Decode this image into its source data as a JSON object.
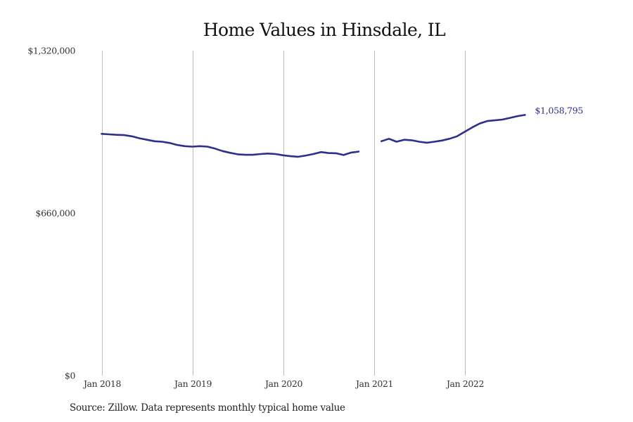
{
  "chart_data": {
    "type": "line",
    "title": "Home Values in Hinsdale, IL",
    "xlabel": "",
    "ylabel": "",
    "source": "Source: Zillow. Data represents monthly typical home value",
    "ylim": [
      0,
      1320000
    ],
    "y_ticks": [
      {
        "value": 0,
        "label": "$0"
      },
      {
        "value": 660000,
        "label": "$660,000"
      },
      {
        "value": 1320000,
        "label": "$1,320,000"
      }
    ],
    "x_range": [
      "2018-01",
      "2022-12"
    ],
    "x_ticks": [
      {
        "date": "2018-01",
        "label": "Jan 2018"
      },
      {
        "date": "2019-01",
        "label": "Jan 2019"
      },
      {
        "date": "2020-01",
        "label": "Jan 2020"
      },
      {
        "date": "2021-01",
        "label": "Jan 2021"
      },
      {
        "date": "2022-01",
        "label": "Jan 2022"
      }
    ],
    "grid": {
      "vertical": true,
      "horizontal": false
    },
    "legend": "none",
    "series_color": "#2e2e8c",
    "end_label": "$1,058,795",
    "series": [
      {
        "points": [
          {
            "date": "2018-01",
            "value": 982000
          },
          {
            "date": "2018-02",
            "value": 980000
          },
          {
            "date": "2018-03",
            "value": 978000
          },
          {
            "date": "2018-04",
            "value": 977000
          },
          {
            "date": "2018-05",
            "value": 972000
          },
          {
            "date": "2018-06",
            "value": 964000
          },
          {
            "date": "2018-07",
            "value": 958000
          },
          {
            "date": "2018-08",
            "value": 952000
          },
          {
            "date": "2018-09",
            "value": 950000
          },
          {
            "date": "2018-10",
            "value": 945000
          },
          {
            "date": "2018-11",
            "value": 937000
          },
          {
            "date": "2018-12",
            "value": 932000
          },
          {
            "date": "2019-01",
            "value": 930000
          },
          {
            "date": "2019-02",
            "value": 932000
          },
          {
            "date": "2019-03",
            "value": 930000
          },
          {
            "date": "2019-04",
            "value": 922000
          },
          {
            "date": "2019-05",
            "value": 912000
          },
          {
            "date": "2019-06",
            "value": 905000
          },
          {
            "date": "2019-07",
            "value": 899000
          },
          {
            "date": "2019-08",
            "value": 897000
          },
          {
            "date": "2019-09",
            "value": 897000
          },
          {
            "date": "2019-10",
            "value": 900000
          },
          {
            "date": "2019-11",
            "value": 902000
          },
          {
            "date": "2019-12",
            "value": 900000
          },
          {
            "date": "2020-01",
            "value": 895000
          },
          {
            "date": "2020-02",
            "value": 891000
          },
          {
            "date": "2020-03",
            "value": 889000
          },
          {
            "date": "2020-04",
            "value": 894000
          },
          {
            "date": "2020-05",
            "value": 900000
          },
          {
            "date": "2020-06",
            "value": 908000
          },
          {
            "date": "2020-07",
            "value": 904000
          },
          {
            "date": "2020-08",
            "value": 903000
          },
          {
            "date": "2020-09",
            "value": 896000
          },
          {
            "date": "2020-10",
            "value": 906000
          },
          {
            "date": "2020-11",
            "value": 910000
          },
          {
            "date": "2020-12",
            "value": null
          },
          {
            "date": "2021-01",
            "value": null
          },
          {
            "date": "2021-02",
            "value": 952000
          },
          {
            "date": "2021-03",
            "value": 962000
          },
          {
            "date": "2021-04",
            "value": 950000
          },
          {
            "date": "2021-05",
            "value": 958000
          },
          {
            "date": "2021-06",
            "value": 956000
          },
          {
            "date": "2021-07",
            "value": 950000
          },
          {
            "date": "2021-08",
            "value": 946000
          },
          {
            "date": "2021-09",
            "value": 950000
          },
          {
            "date": "2021-10",
            "value": 955000
          },
          {
            "date": "2021-11",
            "value": 962000
          },
          {
            "date": "2021-12",
            "value": 972000
          },
          {
            "date": "2022-01",
            "value": 990000
          },
          {
            "date": "2022-02",
            "value": 1008000
          },
          {
            "date": "2022-03",
            "value": 1024000
          },
          {
            "date": "2022-04",
            "value": 1034000
          },
          {
            "date": "2022-05",
            "value": 1037000
          },
          {
            "date": "2022-06",
            "value": 1040000
          },
          {
            "date": "2022-07",
            "value": 1047000
          },
          {
            "date": "2022-08",
            "value": 1054000
          },
          {
            "date": "2022-09",
            "value": 1058795
          }
        ]
      }
    ]
  }
}
